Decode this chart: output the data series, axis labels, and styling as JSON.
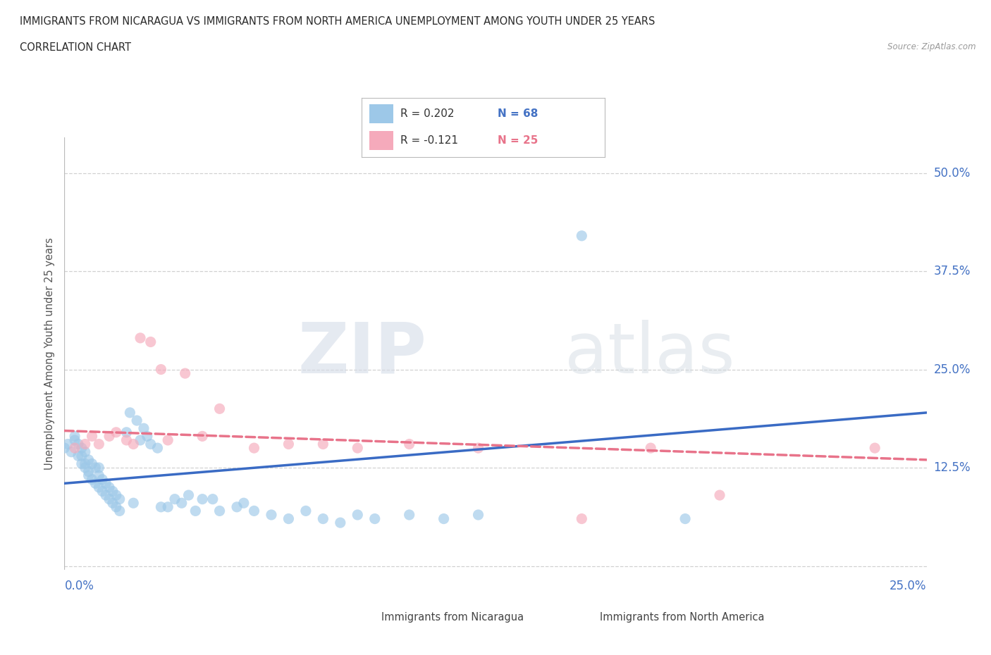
{
  "title_line1": "IMMIGRANTS FROM NICARAGUA VS IMMIGRANTS FROM NORTH AMERICA UNEMPLOYMENT AMONG YOUTH UNDER 25 YEARS",
  "title_line2": "CORRELATION CHART",
  "source": "Source: ZipAtlas.com",
  "ylabel": "Unemployment Among Youth under 25 years",
  "xlim": [
    0.0,
    0.25
  ],
  "ylim": [
    -0.005,
    0.545
  ],
  "color_nicaragua": "#9DC8E8",
  "color_north_america": "#F5AABB",
  "color_line_nicaragua": "#3A6BC4",
  "color_line_north_america": "#E8738A",
  "nicaragua_x": [
    0.0,
    0.001,
    0.002,
    0.003,
    0.003,
    0.004,
    0.004,
    0.005,
    0.005,
    0.005,
    0.006,
    0.006,
    0.006,
    0.007,
    0.007,
    0.007,
    0.008,
    0.008,
    0.009,
    0.009,
    0.01,
    0.01,
    0.01,
    0.011,
    0.011,
    0.012,
    0.012,
    0.013,
    0.013,
    0.014,
    0.014,
    0.015,
    0.015,
    0.016,
    0.016,
    0.018,
    0.019,
    0.02,
    0.021,
    0.022,
    0.023,
    0.024,
    0.025,
    0.027,
    0.028,
    0.03,
    0.032,
    0.034,
    0.036,
    0.038,
    0.04,
    0.043,
    0.045,
    0.05,
    0.052,
    0.055,
    0.06,
    0.065,
    0.07,
    0.075,
    0.08,
    0.085,
    0.09,
    0.1,
    0.11,
    0.12,
    0.15,
    0.18
  ],
  "nicaragua_y": [
    0.15,
    0.155,
    0.145,
    0.16,
    0.165,
    0.14,
    0.155,
    0.13,
    0.14,
    0.15,
    0.125,
    0.13,
    0.145,
    0.115,
    0.12,
    0.135,
    0.11,
    0.13,
    0.105,
    0.125,
    0.1,
    0.115,
    0.125,
    0.095,
    0.11,
    0.09,
    0.105,
    0.085,
    0.1,
    0.08,
    0.095,
    0.075,
    0.09,
    0.07,
    0.085,
    0.17,
    0.195,
    0.08,
    0.185,
    0.16,
    0.175,
    0.165,
    0.155,
    0.15,
    0.075,
    0.075,
    0.085,
    0.08,
    0.09,
    0.07,
    0.085,
    0.085,
    0.07,
    0.075,
    0.08,
    0.07,
    0.065,
    0.06,
    0.07,
    0.06,
    0.055,
    0.065,
    0.06,
    0.065,
    0.06,
    0.065,
    0.42,
    0.06
  ],
  "north_america_x": [
    0.003,
    0.006,
    0.008,
    0.01,
    0.013,
    0.015,
    0.018,
    0.02,
    0.022,
    0.025,
    0.028,
    0.03,
    0.035,
    0.04,
    0.045,
    0.055,
    0.065,
    0.075,
    0.085,
    0.1,
    0.12,
    0.15,
    0.17,
    0.19,
    0.235
  ],
  "north_america_y": [
    0.15,
    0.155,
    0.165,
    0.155,
    0.165,
    0.17,
    0.16,
    0.155,
    0.29,
    0.285,
    0.25,
    0.16,
    0.245,
    0.165,
    0.2,
    0.15,
    0.155,
    0.155,
    0.15,
    0.155,
    0.15,
    0.06,
    0.15,
    0.09,
    0.15
  ],
  "ytick_vals": [
    0.0,
    0.125,
    0.25,
    0.375,
    0.5
  ],
  "ytick_labels": [
    "",
    "12.5%",
    "25.0%",
    "37.5%",
    "50.0%"
  ],
  "watermark_zip": "ZIP",
  "watermark_atlas": "atlas",
  "background_color": "#FFFFFF",
  "line_nic_x0": 0.0,
  "line_nic_x1": 0.25,
  "line_nic_y0": 0.105,
  "line_nic_y1": 0.195,
  "line_na_x0": 0.0,
  "line_na_x1": 0.25,
  "line_na_y0": 0.172,
  "line_na_y1": 0.135
}
